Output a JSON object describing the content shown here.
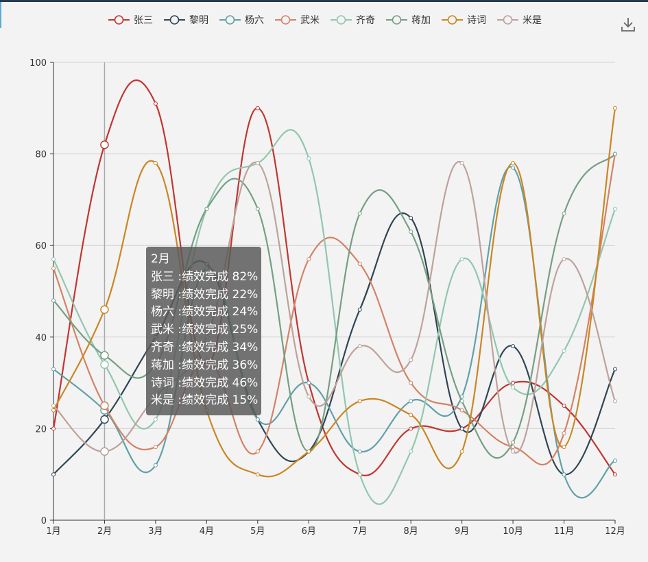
{
  "chart_data": {
    "type": "line",
    "smooth": true,
    "categories": [
      "1月",
      "2月",
      "3月",
      "4月",
      "5月",
      "6月",
      "7月",
      "8月",
      "9月",
      "10月",
      "11月",
      "12月"
    ],
    "ylim": [
      0,
      100
    ],
    "yticks": [
      0,
      20,
      40,
      60,
      80,
      100
    ],
    "grid": true,
    "legend_position": "top-center",
    "series": [
      {
        "name": "张三",
        "color": "#c23531",
        "values": [
          20,
          82,
          91,
          34,
          90,
          30,
          10,
          20,
          20,
          30,
          25,
          10
        ]
      },
      {
        "name": "黎明",
        "color": "#2f4554",
        "values": [
          10,
          22,
          40,
          56,
          22,
          15,
          46,
          66,
          20,
          38,
          10,
          33
        ]
      },
      {
        "name": "杨六",
        "color": "#61a0a8",
        "values": [
          33,
          24,
          12,
          55,
          22,
          30,
          15,
          26,
          27,
          77,
          10,
          13
        ]
      },
      {
        "name": "武米",
        "color": "#d48265",
        "values": [
          55,
          25,
          16,
          35,
          15,
          57,
          56,
          30,
          24,
          16,
          19,
          80
        ]
      },
      {
        "name": "齐奇",
        "color": "#91c7ae",
        "values": [
          57,
          34,
          22,
          68,
          78,
          79,
          10,
          15,
          57,
          29,
          37,
          68
        ]
      },
      {
        "name": "蒋加",
        "color": "#749f83",
        "values": [
          48,
          36,
          34,
          68,
          68,
          15,
          67,
          63,
          26,
          17,
          67,
          80
        ]
      },
      {
        "name": "诗词",
        "color": "#ca8622",
        "values": [
          24,
          46,
          78,
          24,
          10,
          15,
          26,
          23,
          15,
          78,
          16,
          90
        ]
      },
      {
        "name": "米是",
        "color": "#bda29a",
        "values": [
          25,
          15,
          27,
          40,
          78,
          27,
          38,
          35,
          78,
          15,
          57,
          26
        ]
      }
    ],
    "highlight_index": 1,
    "tooltip": {
      "title": "2月",
      "rows": [
        {
          "name": "张三",
          "sep": " :",
          "text": "绩效完成 82%"
        },
        {
          "name": "黎明",
          "sep": " :",
          "text": "绩效完成 22%"
        },
        {
          "name": "杨六",
          "sep": " :",
          "text": "绩效完成 24%"
        },
        {
          "name": "武米",
          "sep": " :",
          "text": "绩效完成 25%"
        },
        {
          "name": "齐奇",
          "sep": " :",
          "text": "绩效完成 34%"
        },
        {
          "name": "蒋加",
          "sep": " :",
          "text": "绩效完成 36%"
        },
        {
          "name": "诗词",
          "sep": " :",
          "text": "绩效完成 46%"
        },
        {
          "name": "米是",
          "sep": " :",
          "text": "绩效完成 15%"
        }
      ]
    }
  },
  "toolbox": {
    "download_icon": "download-icon"
  }
}
